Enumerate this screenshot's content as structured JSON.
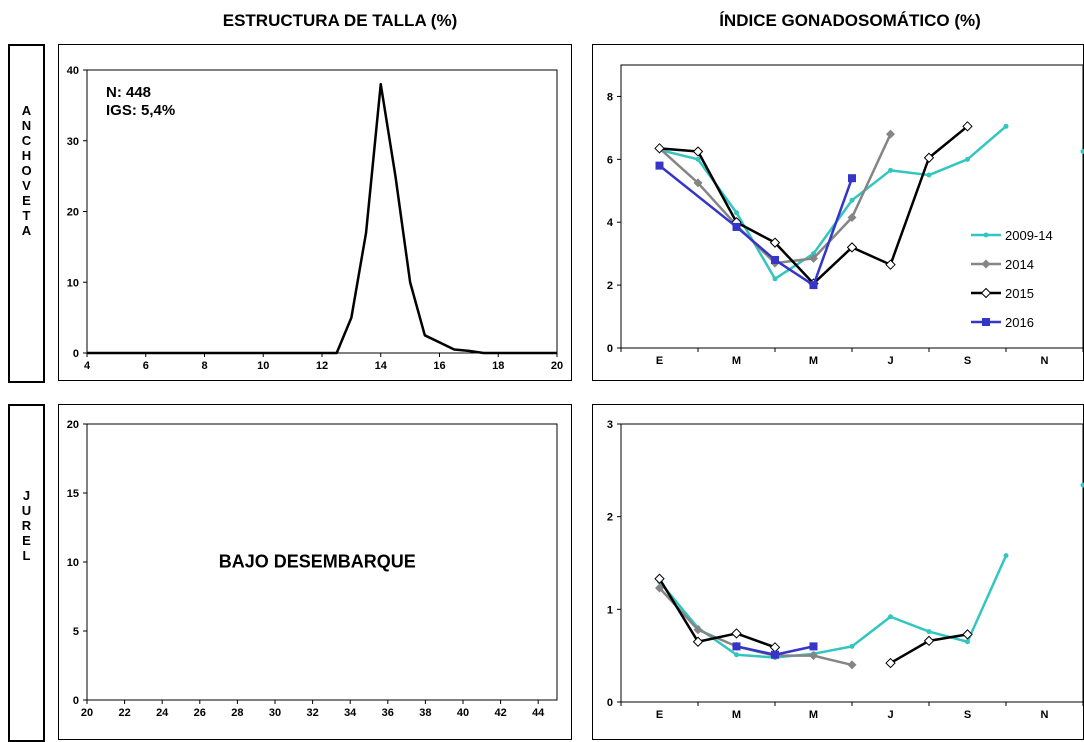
{
  "headers": {
    "left": "ESTRUCTURA DE TALLA (%)",
    "right": "ÍNDICE GONADOSOMÁTICO (%)"
  },
  "species": {
    "top": "ANCHOVETA",
    "bottom": "JUREL"
  },
  "colors": {
    "2009-14": "#33c6c0",
    "2014": "#858585",
    "2015": "#000000",
    "2016": "#3535c8"
  },
  "chart_data": [
    {
      "type": "line",
      "species": "ANCHOVETA",
      "annotations": [
        "N: 448",
        "IGS: 5,4%"
      ],
      "xlim": [
        4,
        20
      ],
      "ylim": [
        0,
        40
      ],
      "xticks": [
        4,
        6,
        8,
        10,
        12,
        14,
        16,
        18,
        20
      ],
      "yticks": [
        0,
        10,
        20,
        30,
        40
      ],
      "series": [
        {
          "x": [
            4,
            4.5,
            5,
            5.5,
            6,
            6.5,
            7,
            7.5,
            8,
            8.5,
            9,
            9.5,
            10,
            10.5,
            11,
            11.5,
            12,
            12.5,
            13,
            13.5,
            14,
            14.5,
            15,
            15.5,
            16,
            16.5,
            17,
            17.5,
            18,
            18.5,
            19,
            19.5,
            20
          ],
          "y": [
            0,
            0,
            0,
            0,
            0,
            0,
            0,
            0,
            0,
            0,
            0,
            0,
            0,
            0,
            0,
            0,
            0,
            0,
            5,
            17,
            38,
            25,
            10,
            2.5,
            1.5,
            0.5,
            0.3,
            0,
            0,
            0,
            0,
            0,
            0
          ],
          "color": "#000000"
        }
      ]
    },
    {
      "type": "line",
      "species": "ANCHOVETA",
      "categories": [
        "E",
        "M",
        "M",
        "J",
        "S",
        "N"
      ],
      "xlim": [
        0,
        12
      ],
      "ylim": [
        0,
        9
      ],
      "yticks": [
        0,
        2,
        4,
        6,
        8
      ],
      "legend": "right",
      "series": [
        {
          "name": "2009-14",
          "marker": "dot",
          "color": "#33c6c0",
          "x": [
            1,
            2,
            3,
            4,
            5,
            6,
            7,
            8,
            9,
            10
          ],
          "y": [
            6.3,
            6.0,
            4.3,
            2.2,
            3.0,
            4.7,
            5.65,
            5.5,
            6.0,
            7.05
          ]
        },
        {
          "name": "2014",
          "marker": "diamond",
          "color": "#858585",
          "x": [
            1,
            2,
            3,
            4,
            5,
            6,
            7
          ],
          "y": [
            6.35,
            5.25,
            3.9,
            2.7,
            2.85,
            4.15,
            6.8
          ]
        },
        {
          "name": "2015",
          "marker": "open-diamond",
          "color": "#000000",
          "x": [
            1,
            2,
            3,
            4,
            5,
            6,
            7,
            8,
            9
          ],
          "y": [
            6.35,
            6.25,
            4.0,
            3.35,
            2.05,
            3.2,
            2.65,
            6.05,
            7.05
          ]
        },
        {
          "name": "2016",
          "marker": "square",
          "color": "#3535c8",
          "x": [
            1,
            3,
            4,
            5,
            6
          ],
          "y": [
            5.8,
            3.85,
            2.8,
            2.0,
            5.4
          ]
        },
        {
          "marker": "dot",
          "color": "#33c6c0",
          "x": [
            12
          ],
          "y": [
            6.25
          ]
        }
      ]
    },
    {
      "type": "line",
      "species": "JUREL",
      "annotations": [
        "BAJO DESEMBARQUE"
      ],
      "xlim": [
        20,
        45
      ],
      "ylim": [
        0,
        20
      ],
      "xticks": [
        20,
        22,
        24,
        26,
        28,
        30,
        32,
        34,
        36,
        38,
        40,
        42,
        44
      ],
      "yticks": [
        0,
        5,
        10,
        15,
        20
      ],
      "series": []
    },
    {
      "type": "line",
      "species": "JUREL",
      "categories": [
        "E",
        "M",
        "M",
        "J",
        "S",
        "N"
      ],
      "xlim": [
        0,
        12
      ],
      "ylim": [
        0,
        3
      ],
      "yticks": [
        0,
        1,
        2,
        3
      ],
      "series": [
        {
          "name": "2009-14",
          "marker": "dot",
          "color": "#33c6c0",
          "x": [
            1,
            2,
            3,
            4,
            5,
            6,
            7,
            8,
            9,
            10
          ],
          "y": [
            1.3,
            0.8,
            0.51,
            0.48,
            0.52,
            0.6,
            0.92,
            0.76,
            0.65,
            1.58
          ]
        },
        {
          "name": "2014",
          "marker": "diamond",
          "color": "#858585",
          "x": [
            1,
            2,
            3,
            4,
            5,
            6
          ],
          "y": [
            1.23,
            0.78,
            0.6,
            0.5,
            0.5,
            0.4
          ]
        },
        {
          "name": "2015",
          "marker": "open-diamond",
          "color": "#000000",
          "x": [
            1,
            2,
            3,
            4
          ],
          "y": [
            1.33,
            0.65,
            0.74,
            0.59
          ]
        },
        {
          "name": "2015",
          "marker": "open-diamond",
          "color": "#000000",
          "x": [
            7,
            8,
            9
          ],
          "y": [
            0.42,
            0.66,
            0.73
          ]
        },
        {
          "name": "2016",
          "marker": "square",
          "color": "#3535c8",
          "x": [
            3,
            4,
            5
          ],
          "y": [
            0.6,
            0.51,
            0.6
          ]
        },
        {
          "marker": "dot",
          "color": "#33c6c0",
          "x": [
            12
          ],
          "y": [
            2.34
          ]
        }
      ]
    }
  ]
}
